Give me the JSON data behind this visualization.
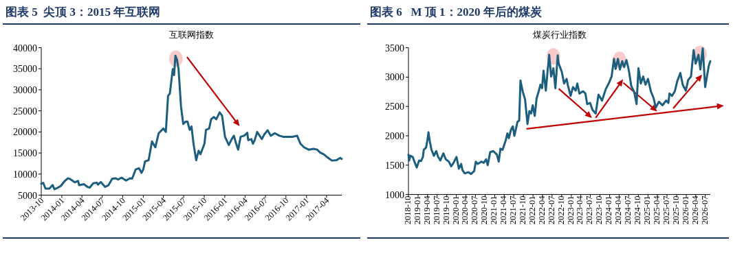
{
  "chart_data": [
    {
      "type": "line",
      "title": "图表 5  尖顶 3：2015 年互联网",
      "subtitle": "互联网指数",
      "x": [
        "2013-10-01",
        "2013-10-10",
        "2013-10-20",
        "2013-11-06",
        "2013-11-21",
        "2013-11-29",
        "2013-12-12",
        "2013-12-28",
        "2014-01-13",
        "2014-01-29",
        "2014-02-08",
        "2014-02-28",
        "2014-03-15",
        "2014-03-20",
        "2014-04-10",
        "2014-04-26",
        "2014-05-06",
        "2014-05-22",
        "2014-06-07",
        "2014-06-12",
        "2014-06-25",
        "2014-07-14",
        "2014-07-29",
        "2014-08-15",
        "2014-08-30",
        "2014-09-10",
        "2014-09-26",
        "2014-10-16",
        "2014-11-02",
        "2014-11-12",
        "2014-11-28",
        "2014-12-13",
        "2014-12-24",
        "2015-01-01",
        "2015-01-09",
        "2015-01-25",
        "2015-02-09",
        "2015-02-24",
        "2015-03-11",
        "2015-04-01",
        "2015-04-12",
        "2015-04-22",
        "2015-04-30",
        "2015-05-13",
        "2015-05-19",
        "2015-05-25",
        "2015-06-01",
        "2015-06-08",
        "2015-06-19",
        "2015-06-29",
        "2015-07-10",
        "2015-07-18",
        "2015-07-28",
        "2015-08-05",
        "2015-08-14",
        "2015-08-26",
        "2015-09-06",
        "2015-09-14",
        "2015-10-02",
        "2015-10-09",
        "2015-10-23",
        "2015-11-01",
        "2015-11-13",
        "2015-11-24",
        "2015-12-09",
        "2015-12-20",
        "2016-01-02",
        "2016-01-19",
        "2016-02-01",
        "2016-02-11",
        "2016-02-21",
        "2016-03-01",
        "2016-03-12",
        "2016-03-28",
        "2016-04-11",
        "2016-04-15",
        "2016-04-29",
        "2016-05-06",
        "2016-05-14",
        "2016-05-25",
        "2016-06-15",
        "2016-06-26",
        "2016-07-11",
        "2016-07-25",
        "2016-08-12",
        "2016-09-02",
        "2016-09-18",
        "2016-10-30",
        "2016-11-20",
        "2016-12-05",
        "2016-12-21",
        "2017-01-11",
        "2017-02-02",
        "2017-02-18",
        "2017-03-03",
        "2017-03-19",
        "2017-04-04",
        "2017-04-25",
        "2017-05-16",
        "2017-06-01",
        "2017-06-08"
      ],
      "series": [
        {
          "color": "#1b5e7e",
          "values": [
            7700,
            7900,
            6550,
            6550,
            7400,
            6400,
            6700,
            7200,
            8300,
            9000,
            8800,
            8050,
            8350,
            7350,
            7600,
            6950,
            6800,
            7800,
            7950,
            7500,
            8100,
            6950,
            7350,
            8900,
            9000,
            8700,
            9150,
            8450,
            9000,
            8900,
            11100,
            11400,
            10300,
            11100,
            13000,
            13300,
            17750,
            16350,
            19700,
            20800,
            20000,
            28550,
            29100,
            34900,
            33500,
            38100,
            37100,
            34900,
            26050,
            21900,
            22450,
            22450,
            20500,
            21300,
            17200,
            13300,
            15550,
            14700,
            17200,
            20500,
            20800,
            23000,
            23550,
            23000,
            24650,
            23850,
            18850,
            16900,
            18300,
            19100,
            17200,
            15800,
            18850,
            19100,
            19800,
            18050,
            18300,
            17200,
            18050,
            20000,
            18300,
            19400,
            20400,
            19100,
            19700,
            19100,
            18850,
            18850,
            19100,
            17200,
            16350,
            15800,
            16000,
            15800,
            15100,
            14700,
            14000,
            13200,
            13300,
            13850,
            13600
          ]
        }
      ],
      "xlim": [
        "2013-10-01",
        "2017-06-08"
      ],
      "xticks": [
        "2013-10",
        "2014-01",
        "2014-04",
        "2014-07",
        "2014-10",
        "2015-01",
        "2015-04",
        "2015-07",
        "2015-10",
        "2016-01",
        "2016-04",
        "2016-07",
        "2016-10",
        "2017-01",
        "2017-04"
      ],
      "ylim": [
        5000,
        40000
      ],
      "yticks": [
        5000,
        10000,
        15000,
        20000,
        25000,
        30000,
        35000,
        40000
      ]
    },
    {
      "type": "line",
      "title": "图表 6   M 顶 1：2020 年后的煤炭",
      "subtitle": "煤炭行业指数",
      "x": [
        "2018-10-01",
        "2018-10-08",
        "2018-10-19",
        "2018-11-11",
        "2018-11-27",
        "2018-12-19",
        "2019-01-11",
        "2019-01-29",
        "2019-02-16",
        "2019-02-24",
        "2019-03-18",
        "2019-04-01",
        "2019-04-10",
        "2019-04-23",
        "2019-05-09",
        "2019-06-01",
        "2019-06-23",
        "2019-07-09",
        "2019-08-01",
        "2019-08-30",
        "2019-09-22",
        "2019-10-21",
        "2019-11-13",
        "2019-12-05",
        "2020-01-02",
        "2020-01-25",
        "2020-02-16",
        "2020-02-27",
        "2020-03-20",
        "2020-04-23",
        "2020-05-20",
        "2020-06-19",
        "2020-07-04",
        "2020-07-23",
        "2020-08-26",
        "2020-09-18",
        "2020-10-10",
        "2020-10-26",
        "2020-11-18",
        "2020-12-17",
        "2021-01-21",
        "2021-02-08",
        "2021-02-24",
        "2021-03-16",
        "2021-04-15",
        "2021-05-01",
        "2021-05-16",
        "2021-06-04",
        "2021-06-22",
        "2021-07-07",
        "2021-08-06",
        "2021-08-22",
        "2021-09-03",
        "2021-09-25",
        "2021-10-17",
        "2021-11-09",
        "2021-11-27",
        "2021-12-13",
        "2021-12-29",
        "2022-01-17",
        "2022-02-04",
        "2022-02-26",
        "2022-03-12",
        "2022-03-28",
        "2022-04-11",
        "2022-05-03",
        "2022-05-19",
        "2022-06-04",
        "2022-06-22",
        "2022-07-14",
        "2022-08-02",
        "2022-08-24",
        "2022-09-03",
        "2022-10-02",
        "2022-10-24",
        "2022-11-17",
        "2022-11-28",
        "2022-12-25",
        "2023-01-17",
        "2023-02-11",
        "2023-02-27",
        "2023-03-19",
        "2023-04-23",
        "2023-05-15",
        "2023-06-01",
        "2023-06-29",
        "2023-07-22",
        "2023-08-21",
        "2023-09-17",
        "2023-10-21",
        "2023-11-24",
        "2023-12-28",
        "2024-01-20",
        "2024-02-12",
        "2024-02-27",
        "2024-03-20",
        "2024-04-08",
        "2024-04-30",
        "2024-05-18",
        "2024-06-10",
        "2024-07-03",
        "2024-07-25",
        "2024-08-22",
        "2024-09-14",
        "2024-10-02",
        "2024-10-24",
        "2024-11-16",
        "2024-12-08",
        "2025-01-01",
        "2025-01-28",
        "2025-02-24",
        "2025-03-16",
        "2025-04-15",
        "2025-05-19",
        "2025-06-22",
        "2025-07-14",
        "2025-07-25",
        "2025-08-18",
        "2025-09-14",
        "2025-10-07",
        "2025-11-05",
        "2025-11-28",
        "2025-12-27",
        "2026-01-19",
        "2026-02-15",
        "2026-03-12",
        "2026-03-31",
        "2026-04-27",
        "2026-05-15",
        "2026-06-07",
        "2026-06-30",
        "2026-07-17",
        "2026-08-03",
        "2026-08-18"
      ],
      "series": [
        {
          "color": "#1b5e7e",
          "values": [
            1680,
            1580,
            1660,
            1640,
            1560,
            1460,
            1580,
            1570,
            1640,
            1760,
            1800,
            1940,
            2060,
            1900,
            1760,
            1660,
            1740,
            1650,
            1580,
            1700,
            1600,
            1560,
            1480,
            1540,
            1640,
            1440,
            1520,
            1420,
            1360,
            1380,
            1350,
            1400,
            1560,
            1520,
            1560,
            1540,
            1600,
            1500,
            1720,
            1740,
            1680,
            1560,
            1780,
            1760,
            1920,
            2040,
            1960,
            2100,
            2160,
            2000,
            2240,
            2260,
            2940,
            2750,
            2620,
            2200,
            2420,
            2380,
            2520,
            2340,
            2640,
            2770,
            2870,
            2810,
            3110,
            2770,
            3090,
            3380,
            3010,
            3150,
            2810,
            3370,
            3230,
            3090,
            2890,
            2970,
            2870,
            2680,
            2830,
            2770,
            2890,
            2720,
            2760,
            2720,
            2540,
            2560,
            2440,
            2380,
            2700,
            2600,
            2790,
            2910,
            3010,
            3310,
            3140,
            3310,
            3130,
            3270,
            3170,
            3290,
            3110,
            2850,
            2750,
            2540,
            3150,
            2890,
            3010,
            2870,
            2970,
            2760,
            2640,
            2480,
            2580,
            2520,
            2600,
            2560,
            2720,
            2680,
            2760,
            2930,
            3070,
            2870,
            2770,
            2950,
            3010,
            3460,
            3230,
            3380,
            3130,
            3490,
            2830,
            3010,
            3190,
            3270
          ]
        }
      ],
      "xlim": [
        "2018-10-01",
        "2026-08-18"
      ],
      "xticks": [
        "2018-10",
        "2019-01",
        "2019-04",
        "2019-07",
        "2019-10",
        "2020-01",
        "2020-04",
        "2020-07",
        "2020-10",
        "2021-01",
        "2021-04",
        "2021-07",
        "2021-10",
        "2022-01",
        "2022-04",
        "2022-07",
        "2022-10",
        "2023-01",
        "2023-04",
        "2023-07",
        "2023-10",
        "2024-01",
        "2024-04",
        "2024-07",
        "2024-10",
        "2025-01",
        "2025-04",
        "2025-07",
        "2025-10",
        "2026-01",
        "2026-04",
        "2026-07"
      ],
      "ylim": [
        1000,
        3500
      ],
      "yticks": [
        1000,
        1500,
        2000,
        2500,
        3000,
        3500
      ]
    }
  ]
}
